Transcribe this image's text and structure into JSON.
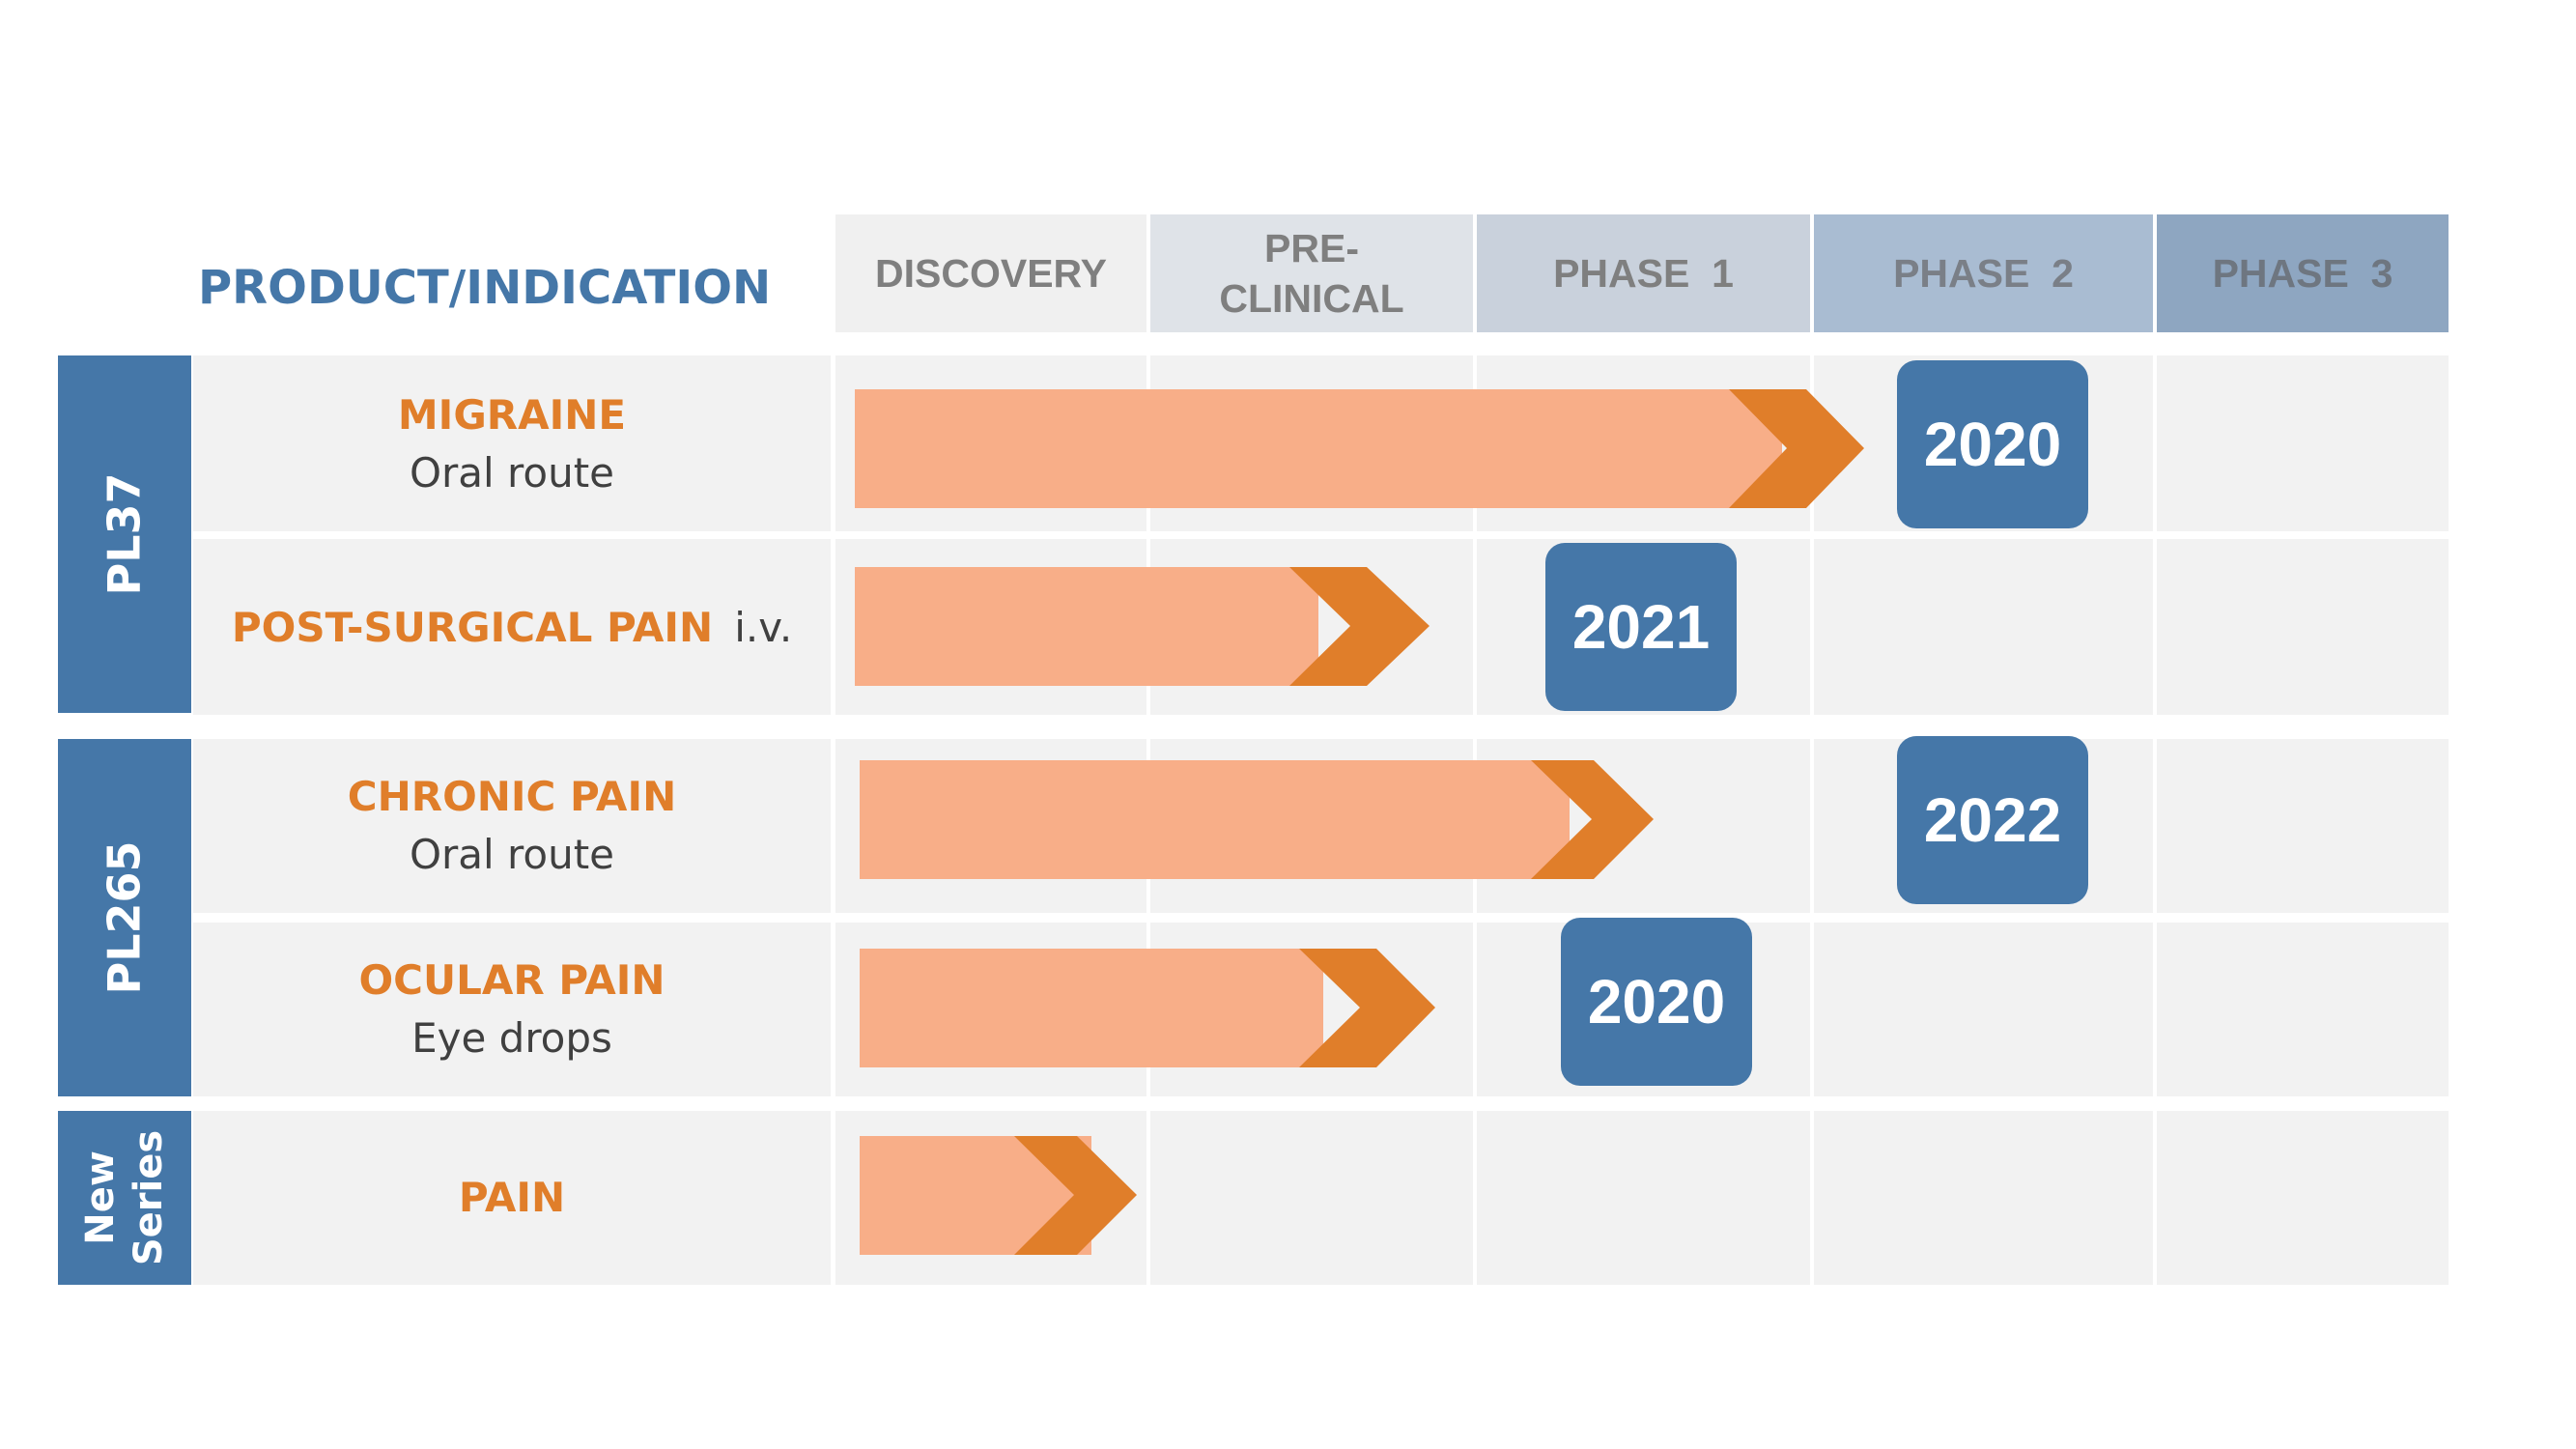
{
  "header": {
    "title": "PRODUCT/INDICATION",
    "phases": [
      {
        "label": "DISCOVERY",
        "bg": "#f0f0f0",
        "color": "#7f7f7f"
      },
      {
        "label": "PRE-\nCLINICAL",
        "bg": "#dfe3e8",
        "color": "#7f7f7f"
      },
      {
        "label": "PHASE  1",
        "bg": "#c9d1dc",
        "color": "#7f7f7f"
      },
      {
        "label": "PHASE  2",
        "bg": "#a9bcd2",
        "color": "#7a7f87"
      },
      {
        "label": "PHASE  3",
        "bg": "#8ea6c1",
        "color": "#6e7680"
      }
    ]
  },
  "groups": [
    {
      "label": "PL37"
    },
    {
      "label": "PL265"
    },
    {
      "label": "New\nSeries"
    }
  ],
  "rows": [
    {
      "name": "MIGRAINE",
      "route": "Oral route",
      "badge": "2020"
    },
    {
      "name": "POST-SURGICAL PAIN",
      "route": "i.v.",
      "badge": "2021"
    },
    {
      "name": "CHRONIC PAIN",
      "route": "Oral route",
      "badge": "2022"
    },
    {
      "name": "OCULAR PAIN",
      "route": "Eye drops",
      "badge": "2020"
    },
    {
      "name": "PAIN",
      "route": "",
      "badge": ""
    }
  ],
  "colors": {
    "accent": "#4577a8",
    "orange": "#e07e2a",
    "arrow_fill": "#f8ae88",
    "arrow_head": "#e07e2a",
    "cell": "#f2f2f2"
  }
}
